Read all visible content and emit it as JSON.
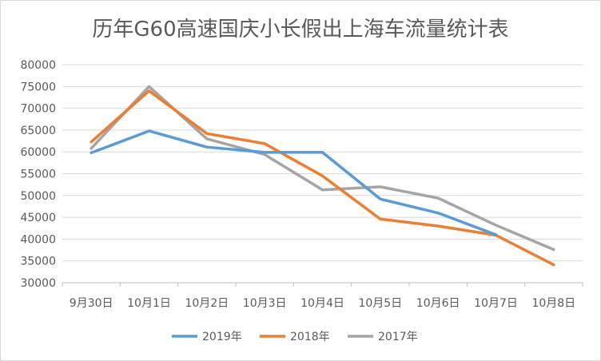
{
  "chart_data": {
    "type": "line",
    "title": "历年G60高速国庆小长假出上海车流量统计表",
    "xlabel": "",
    "ylabel": "",
    "categories": [
      "9月30日",
      "10月1日",
      "10月2日",
      "10月3日",
      "10月4日",
      "10月5日",
      "10月6日",
      "10月7日",
      "10月8日"
    ],
    "ylim": [
      30000,
      80000
    ],
    "yticks": [
      30000,
      35000,
      40000,
      45000,
      50000,
      55000,
      60000,
      65000,
      70000,
      75000,
      80000
    ],
    "grid": true,
    "legend_position": "bottom",
    "series": [
      {
        "name": "2019年",
        "color": "#5B9BD5",
        "values": [
          59800,
          64800,
          61100,
          59900,
          59900,
          49200,
          46000,
          41000,
          null
        ]
      },
      {
        "name": "2018年",
        "color": "#ED7D31",
        "values": [
          62300,
          74000,
          64200,
          61900,
          54500,
          44600,
          43000,
          40900,
          34100
        ]
      },
      {
        "name": "2017年",
        "color": "#A5A5A5",
        "values": [
          60800,
          75000,
          63000,
          59400,
          51300,
          52000,
          49400,
          43200,
          37600
        ]
      }
    ]
  }
}
